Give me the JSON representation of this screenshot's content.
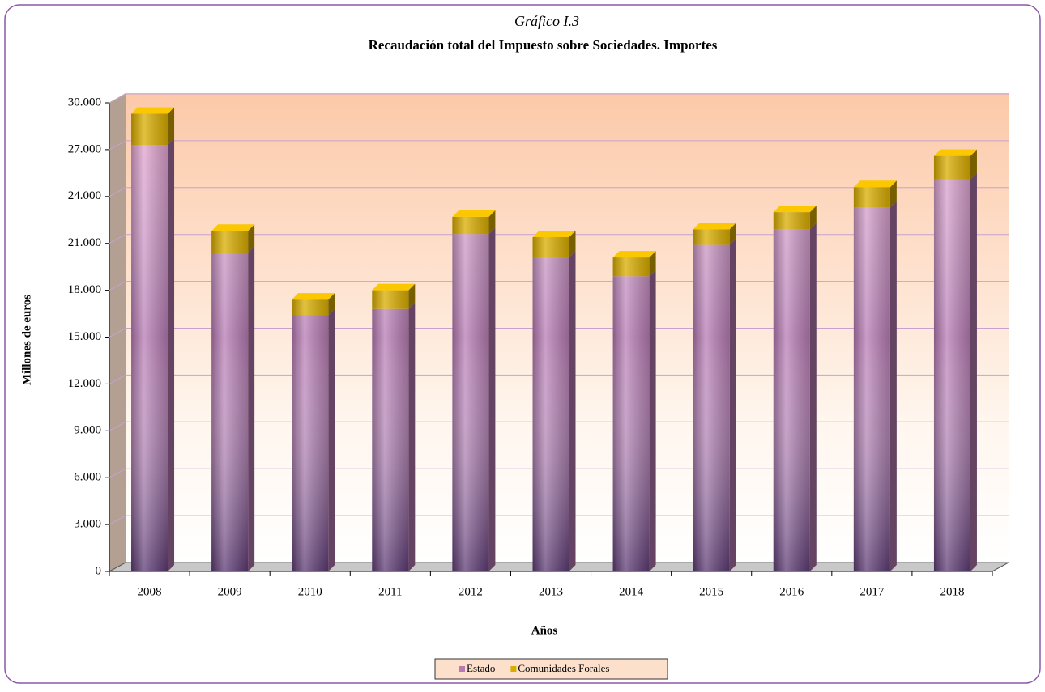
{
  "chart_data": {
    "type": "bar3d_stacked",
    "title_top": "Gráfico I.3",
    "title": "Recaudación total del Impuesto sobre Sociedades.  Importes",
    "x_label": "Años",
    "y_label": "Millones de euros",
    "categories": [
      "2008",
      "2009",
      "2010",
      "2011",
      "2012",
      "2013",
      "2014",
      "2015",
      "2016",
      "2017",
      "2018"
    ],
    "series": [
      {
        "name": "Estado",
        "color": "#b77bb4",
        "values": [
          27300,
          20400,
          16400,
          16800,
          21600,
          20100,
          18900,
          20900,
          21900,
          23300,
          25100
        ]
      },
      {
        "name": "Comunidades Forales",
        "color": "#d9ad00",
        "values": [
          2000,
          1400,
          1000,
          1200,
          1100,
          1300,
          1200,
          1000,
          1100,
          1300,
          1500
        ]
      }
    ],
    "ylim": [
      0,
      30000
    ],
    "yticks": [
      0,
      {
        "value": 3000,
        "label": "3.000"
      },
      {
        "value": 6000,
        "label": "6.000"
      },
      {
        "value": 9000,
        "label": "9.000"
      },
      {
        "value": 12000,
        "label": "12.000"
      },
      {
        "value": 15000,
        "label": "15.000"
      },
      {
        "value": 18000,
        "label": "18.000"
      },
      {
        "value": 21000,
        "label": "21.000"
      },
      {
        "value": 24000,
        "label": "24.000"
      },
      {
        "value": 27000,
        "label": "27.000"
      },
      {
        "value": 30000,
        "label": "30.000"
      }
    ],
    "grid": true,
    "legend": "bottom"
  }
}
